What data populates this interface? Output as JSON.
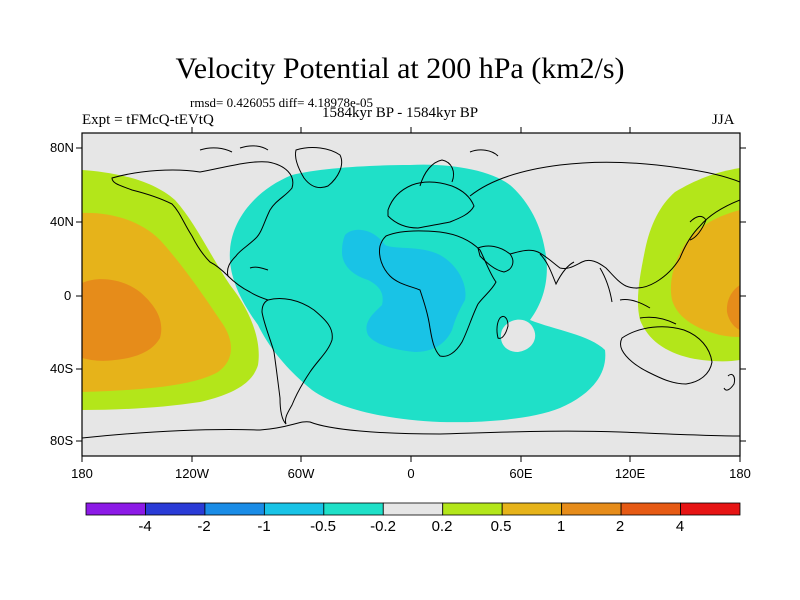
{
  "title": "Velocity Potential at 200 hPa (km2/s)",
  "stats": "rmsd= 0.426055 diff= 4.18978e-05",
  "left_label": "Expt = tFMcQ-tEVtQ",
  "center_label": "1584kyr BP - 1584kyr BP",
  "right_label": "JJA",
  "map": {
    "projection": "cylindrical equidistant",
    "lon_ticks": [
      "180",
      "120W",
      "60W",
      "0",
      "60E",
      "120E",
      "180"
    ],
    "lat_ticks": [
      "80N",
      "40N",
      "0",
      "40S",
      "80S"
    ],
    "land_color": "#e6e6e6",
    "coast_color": "#000000"
  },
  "colorbar": {
    "colors": [
      "#8c1ae6",
      "#2a3bd6",
      "#1a8ce6",
      "#19c3e6",
      "#1fe0c8",
      "#e6e6e6",
      "#b3e61a",
      "#e6b31a",
      "#e68c1a",
      "#e65a14",
      "#e61414"
    ],
    "labels": [
      "-4",
      "-2",
      "-1",
      "-0.5",
      "-0.2",
      "0.2",
      "0.5",
      "1",
      "2",
      "4"
    ]
  },
  "regions": [
    {
      "name": "negative-region-atlantic-africa",
      "level": "-0.5 to -0.2",
      "color": "#1fe0c8"
    },
    {
      "name": "negative-core-atlantic",
      "level": "-1 to -0.5",
      "color": "#19c3e6"
    },
    {
      "name": "positive-region-pacific-east",
      "level": "0.2 to 0.5",
      "color": "#b3e61a"
    },
    {
      "name": "positive-region-pacific-mid",
      "level": "0.5 to 1",
      "color": "#e6b31a"
    },
    {
      "name": "positive-core-pacific",
      "level": "1 to 2",
      "color": "#e68c1a"
    }
  ]
}
